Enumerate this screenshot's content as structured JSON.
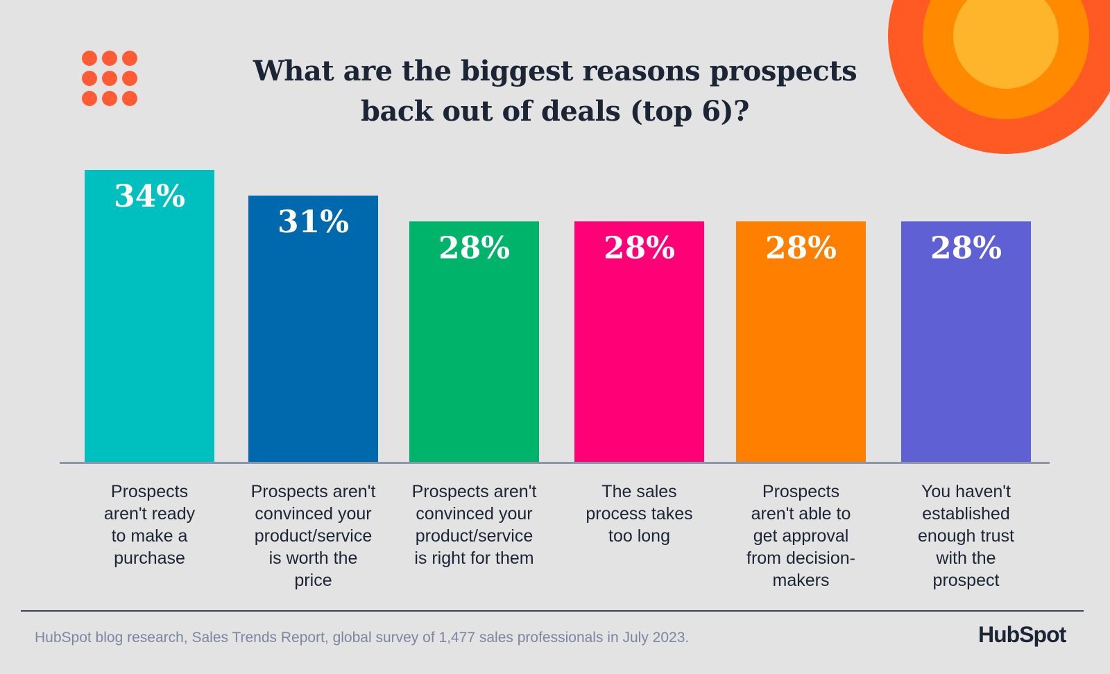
{
  "colors": {
    "background": "#e2e3e2",
    "accent_orange": "#ff5c35",
    "text_dark": "#1b2535",
    "source_text": "#7b86a1",
    "axis": "#8a97a8"
  },
  "chart_data": {
    "type": "bar",
    "title": "What are the biggest reasons prospects back out of deals (top 6)?",
    "title_lines": [
      "What are the biggest reasons prospects",
      "back out of deals (top 6)?"
    ],
    "categories": [
      "Prospects aren't ready to make a purchase",
      "Prospects aren't convinced your product/service is worth the price",
      "Prospects aren't convinced your product/service is right for them",
      "The sales process takes too long",
      "Prospects aren't able to get approval from decision-makers",
      "You haven't established enough trust with the prospect"
    ],
    "category_lines": [
      [
        "Prospects",
        "aren't ready",
        "to make a",
        "purchase"
      ],
      [
        "Prospects aren't",
        "convinced your",
        "product/service",
        "is worth the",
        "price"
      ],
      [
        "Prospects aren't",
        "convinced your",
        "product/service",
        "is right for them"
      ],
      [
        "The sales",
        "process takes",
        "too long"
      ],
      [
        "Prospects",
        "aren't able to",
        "get approval",
        "from decision-",
        "makers"
      ],
      [
        "You haven't",
        "established",
        "enough trust",
        "with the",
        "prospect"
      ]
    ],
    "values": [
      34,
      31,
      28,
      28,
      28,
      28
    ],
    "value_labels": [
      "34%",
      "31%",
      "28%",
      "28%",
      "28%",
      "28%"
    ],
    "bar_colors": [
      "#00bfbf",
      "#0068ad",
      "#00b36b",
      "#ff0077",
      "#ff8000",
      "#5e60d4"
    ],
    "unit": "%",
    "xlabel": "",
    "ylabel": "",
    "ylim": [
      0,
      34
    ],
    "grid": false,
    "legend": "none"
  },
  "footer": {
    "source": "HubSpot blog research, Sales Trends Report, global survey of 1,477 sales professionals in July 2023.",
    "logo_text": "HubSpot"
  }
}
